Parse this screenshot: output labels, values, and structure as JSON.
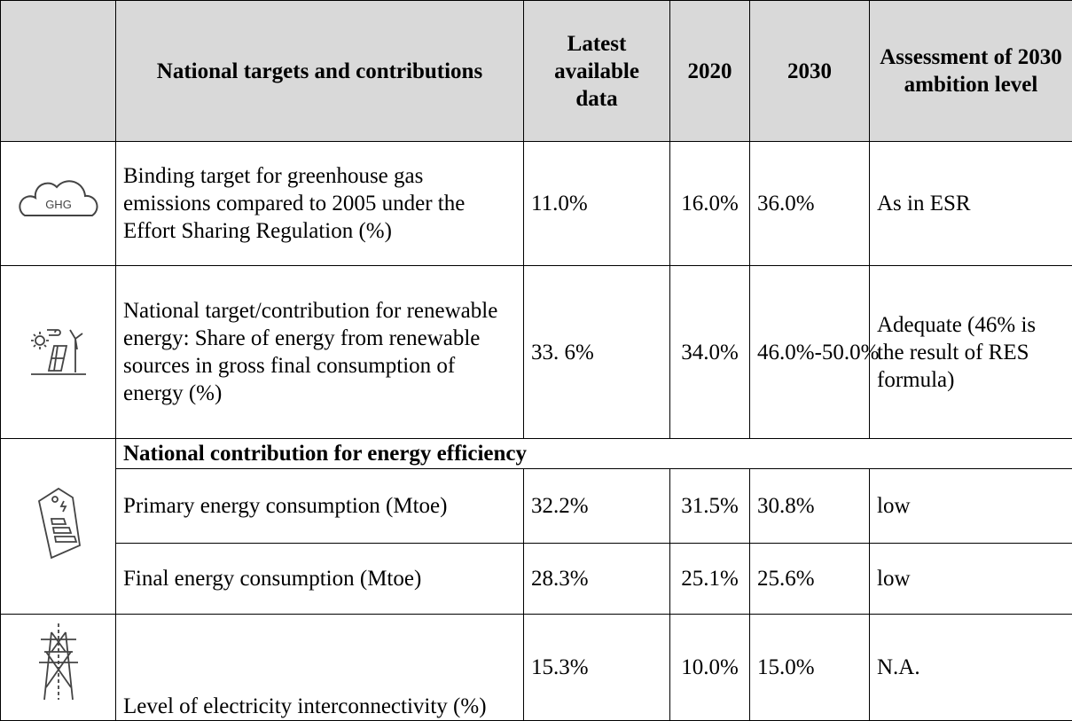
{
  "table": {
    "header": [
      "National targets and contributions",
      "Latest available data",
      "2020",
      "2030",
      "Assessment of 2030 ambition level"
    ],
    "ghg_icon": "GHG",
    "rows": [
      [
        "Binding target for greenhouse gas emissions compared to 2005 under the Effort Sharing Regulation (%)",
        "11.0%",
        "16.0%",
        "36.0%",
        "As in ESR"
      ],
      [
        "National target/contribution for renewable energy: Share of energy from renewable sources in gross final consumption of energy (%)",
        "33. 6%",
        "34.0%",
        "46.0%-50.0%",
        "Adequate (46% is the result of RES formula)"
      ],
      [
        "Primary energy consumption (Mtoe)",
        "32.2%",
        "31.5%",
        "30.8%",
        "low"
      ],
      [
        "Final energy consumption (Mtoe)",
        "28.3%",
        "25.1%",
        "25.6%",
        "low"
      ],
      [
        "Level of electricity interconnectivity (%)",
        "15.3%",
        "10.0%",
        "15.0%",
        "N.A."
      ]
    ],
    "section": "National contribution for energy efficiency"
  }
}
